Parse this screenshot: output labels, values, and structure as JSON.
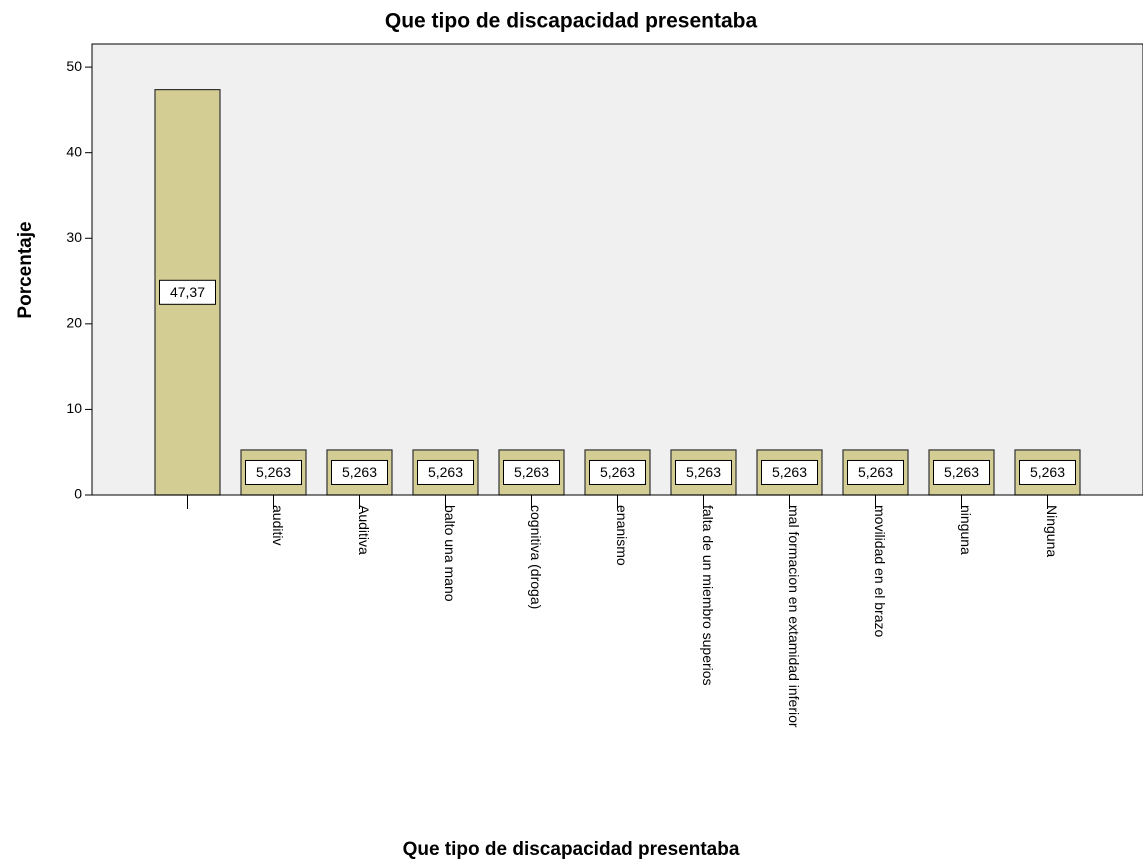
{
  "chart_data": {
    "type": "bar",
    "title": "Que  tipo de discapacidad presentaba",
    "x_label": "Que  tipo de discapacidad presentaba",
    "y_label": "Porcentaje",
    "categories": [
      null,
      "auditiv",
      "Auditiva",
      "balto una mano",
      "cognitiva (droga)",
      "enanismo",
      "falta de un miembro superios",
      "mal formacion en extamidad inferior",
      "movilidad en el brazo",
      "ninguna",
      "Ninguna"
    ],
    "values": [
      47.37,
      5.263,
      5.263,
      5.263,
      5.263,
      5.263,
      5.263,
      5.263,
      5.263,
      5.263,
      5.263
    ],
    "value_labels": [
      "47,37",
      "5,263",
      "5,263",
      "5,263",
      "5,263",
      "5,263",
      "5,263",
      "5,263",
      "5,263",
      "5,263",
      "5,263"
    ],
    "color": "#d3cd94",
    "ylim": [
      0,
      52.7
    ],
    "yticks": [
      0,
      10,
      20,
      30,
      40,
      50
    ]
  }
}
